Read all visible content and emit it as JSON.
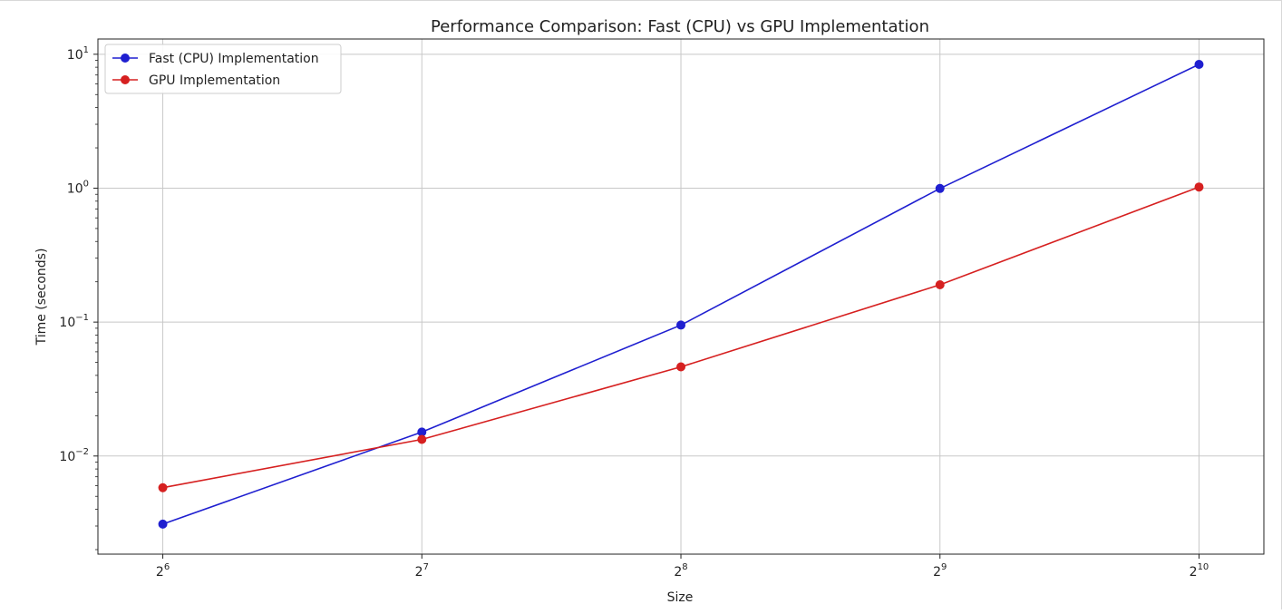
{
  "chart_data": {
    "type": "line",
    "title": "Performance Comparison: Fast (CPU) vs GPU Implementation",
    "xlabel": "Size",
    "ylabel": "Time (seconds)",
    "x": [
      64,
      128,
      256,
      512,
      1024
    ],
    "x_scale": "log2",
    "y_scale": "log10",
    "xlim": [
      53.8,
      1218
    ],
    "ylim": [
      0.00185,
      13
    ],
    "x_ticks": [
      {
        "value": 64,
        "base": "2",
        "exp": "6"
      },
      {
        "value": 128,
        "base": "2",
        "exp": "7"
      },
      {
        "value": 256,
        "base": "2",
        "exp": "8"
      },
      {
        "value": 512,
        "base": "2",
        "exp": "9"
      },
      {
        "value": 1024,
        "base": "2",
        "exp": "10"
      }
    ],
    "y_ticks": [
      {
        "value": 0.01,
        "base": "10",
        "exp": "−2"
      },
      {
        "value": 0.1,
        "base": "10",
        "exp": "−1"
      },
      {
        "value": 1,
        "base": "10",
        "exp": "0"
      },
      {
        "value": 10,
        "base": "10",
        "exp": "1"
      }
    ],
    "grid": true,
    "legend_position": "top-left",
    "series": [
      {
        "name": "Fast (CPU) Implementation",
        "color": "#1f1fd0",
        "values": [
          0.0031,
          0.0151,
          0.095,
          0.995,
          8.4
        ]
      },
      {
        "name": "GPU Implementation",
        "color": "#d62020",
        "values": [
          0.0058,
          0.0133,
          0.0463,
          0.19,
          1.02
        ]
      }
    ]
  }
}
